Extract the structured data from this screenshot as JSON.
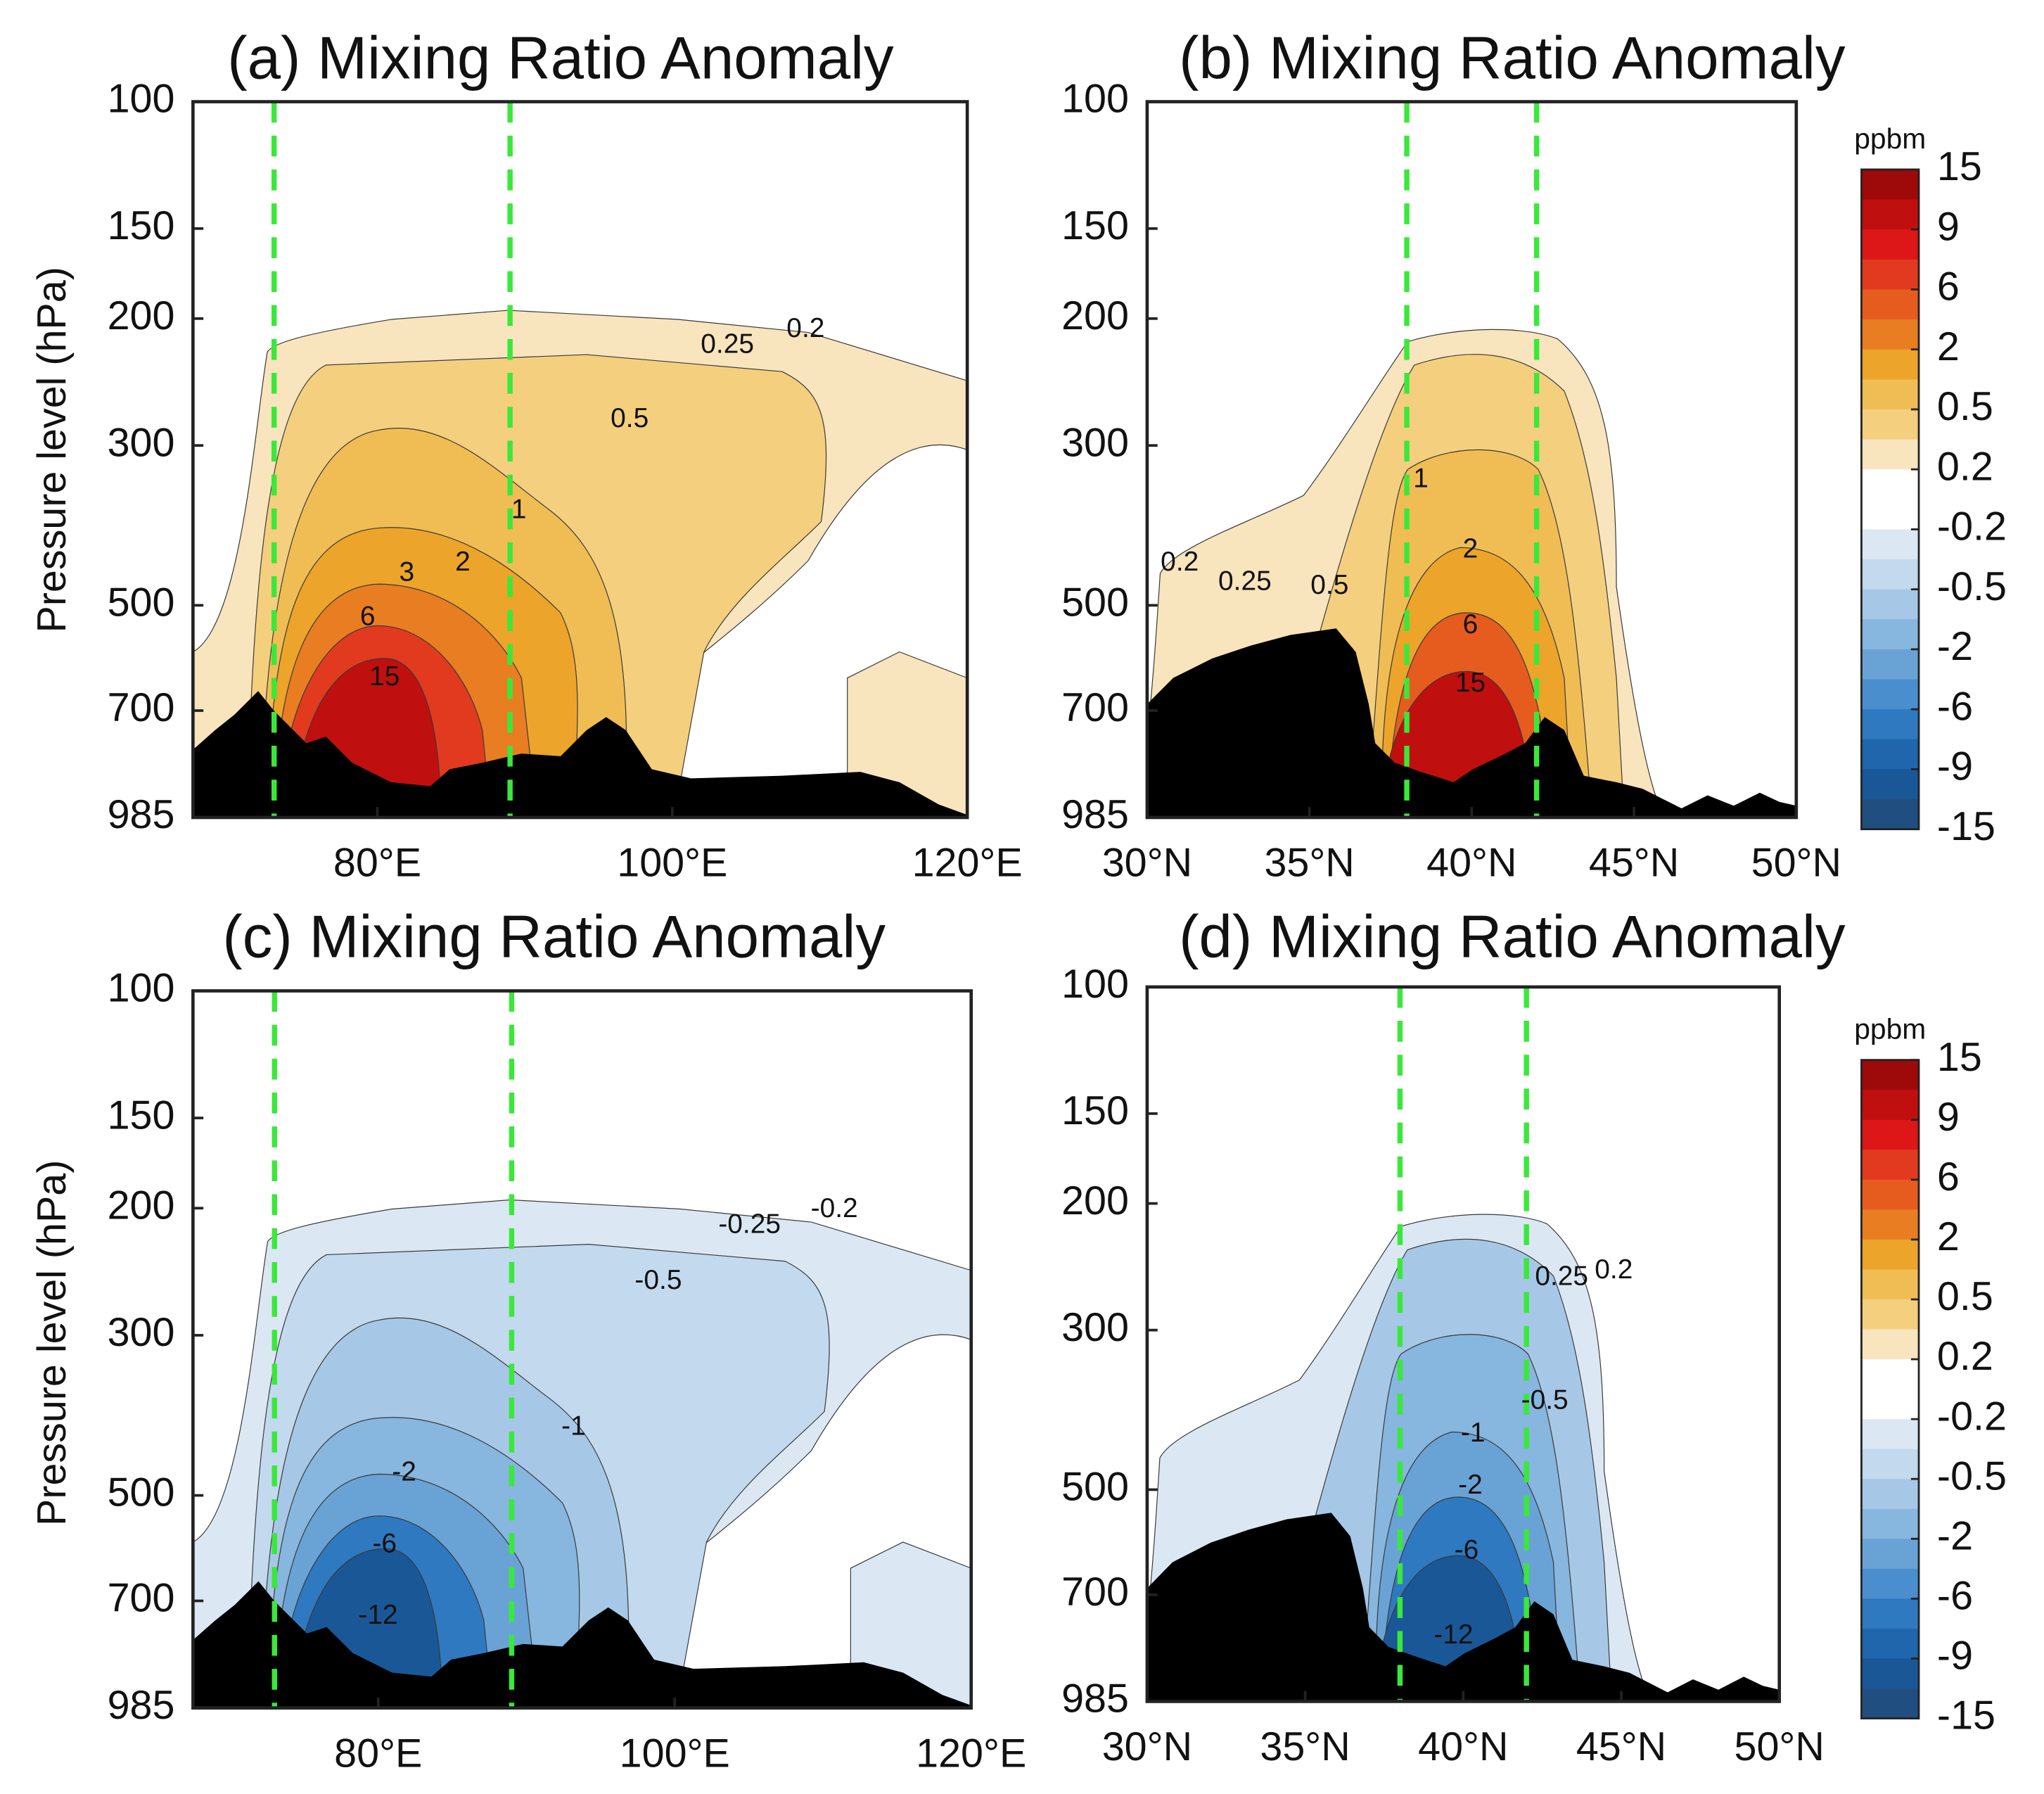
{
  "chart_data": [
    {
      "type": "contour",
      "title": "(a) Mixing Ratio Anomaly",
      "ylabel": "Pressure level (hPa)",
      "xlim": [
        67.5,
        120
      ],
      "xticks": [
        {
          "value": 80,
          "label": "80°E"
        },
        {
          "value": 100,
          "label": "100°E"
        },
        {
          "value": 120,
          "label": "120°E"
        }
      ],
      "ylim": [
        985,
        100
      ],
      "yticks": [
        100,
        150,
        200,
        300,
        500,
        700,
        985
      ],
      "y_scale": "log",
      "vlines": [
        73,
        89
      ],
      "vline_color": "#3ae83a",
      "contour_labels": [
        0.25,
        0.2,
        0.5,
        1,
        2,
        3,
        6,
        15
      ]
    },
    {
      "type": "contour",
      "title": "(b) Mixing Ratio Anomaly",
      "xlim": [
        30,
        50
      ],
      "xticks": [
        {
          "value": 30,
          "label": "30°N"
        },
        {
          "value": 35,
          "label": "35°N"
        },
        {
          "value": 40,
          "label": "40°N"
        },
        {
          "value": 45,
          "label": "45°N"
        },
        {
          "value": 50,
          "label": "50°N"
        }
      ],
      "ylim": [
        985,
        100
      ],
      "yticks": [
        100,
        150,
        200,
        300,
        500,
        700,
        985
      ],
      "y_scale": "log",
      "vlines": [
        38,
        42
      ],
      "vline_color": "#3ae83a",
      "contour_labels": [
        0.2,
        0.25,
        0.5,
        1,
        2,
        6,
        15
      ],
      "colorbar": {
        "label": "ppbm",
        "ticks": [
          15,
          9,
          6,
          2,
          0.5,
          0.2,
          -0.2,
          -0.5,
          -2,
          -6,
          -9,
          -15
        ],
        "colors": [
          "#9e0a0a",
          "#c00f0f",
          "#dd1717",
          "#e23a1f",
          "#e65c1f",
          "#e87d22",
          "#eca42a",
          "#f0bd55",
          "#f4cf7e",
          "#f8e4bd",
          "#ffffff",
          "#ffffff",
          "#dbe8f4",
          "#c2d9ee",
          "#a6c8e6",
          "#87b6de",
          "#69a3d6",
          "#4b8ecd",
          "#2f79c0",
          "#1f66ad",
          "#1a5797",
          "#214e80"
        ]
      }
    },
    {
      "type": "contour",
      "title": "(c) Mixing Ratio Anomaly",
      "ylabel": "Pressure level (hPa)",
      "xlim": [
        67.5,
        120
      ],
      "xticks": [
        {
          "value": 80,
          "label": "80°E"
        },
        {
          "value": 100,
          "label": "100°E"
        },
        {
          "value": 120,
          "label": "120°E"
        }
      ],
      "ylim": [
        985,
        100
      ],
      "yticks": [
        100,
        150,
        200,
        300,
        500,
        700,
        985
      ],
      "y_scale": "log",
      "vlines": [
        73,
        89
      ],
      "vline_color": "#3ae83a",
      "contour_labels": [
        -0.25,
        -0.2,
        -0.5,
        -1,
        -2,
        -6,
        -12
      ]
    },
    {
      "type": "contour",
      "title": "(d) Mixing Ratio Anomaly",
      "xlim": [
        30,
        50
      ],
      "xticks": [
        {
          "value": 30,
          "label": "30°N"
        },
        {
          "value": 35,
          "label": "35°N"
        },
        {
          "value": 40,
          "label": "40°N"
        },
        {
          "value": 45,
          "label": "45°N"
        },
        {
          "value": 50,
          "label": "50°N"
        }
      ],
      "ylim": [
        985,
        100
      ],
      "yticks": [
        100,
        150,
        200,
        300,
        500,
        700,
        985
      ],
      "y_scale": "log",
      "vlines": [
        38,
        42
      ],
      "vline_color": "#3ae83a",
      "contour_labels": [
        0.25,
        0.2,
        -0.5,
        -1,
        -2,
        -6,
        -12
      ],
      "colorbar": {
        "label": "ppbm",
        "ticks": [
          15,
          9,
          6,
          2,
          0.5,
          0.2,
          -0.2,
          -0.5,
          -2,
          -6,
          -9,
          -15
        ],
        "colors": [
          "#9e0a0a",
          "#c00f0f",
          "#dd1717",
          "#e23a1f",
          "#e65c1f",
          "#e87d22",
          "#eca42a",
          "#f0bd55",
          "#f4cf7e",
          "#f8e4bd",
          "#ffffff",
          "#ffffff",
          "#dbe8f4",
          "#c2d9ee",
          "#a6c8e6",
          "#87b6de",
          "#69a3d6",
          "#4b8ecd",
          "#2f79c0",
          "#1f66ad",
          "#1a5797",
          "#214e80"
        ]
      }
    }
  ]
}
